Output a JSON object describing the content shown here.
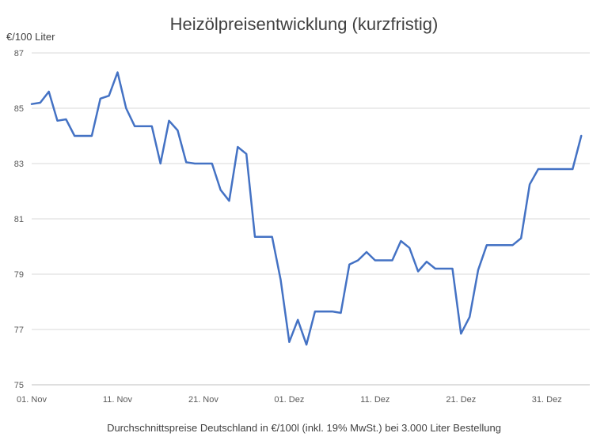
{
  "chart_data": {
    "type": "line",
    "title": "Heizölpreisentwicklung (kurzfristig)",
    "ylabel": "€/100 Liter",
    "xlabel": "Durchschnittspreise Deutschland in €/100l (inkl. 19% MwSt.) bei 3.000 Liter Bestellung",
    "ylim": [
      75,
      87
    ],
    "yticks": [
      75,
      77,
      79,
      81,
      83,
      85,
      87
    ],
    "x_range_days": [
      1,
      66
    ],
    "xticks": [
      {
        "day": 1,
        "label": "01. Nov"
      },
      {
        "day": 11,
        "label": "11. Nov"
      },
      {
        "day": 21,
        "label": "21. Nov"
      },
      {
        "day": 31,
        "label": "01. Dez"
      },
      {
        "day": 41,
        "label": "11. Dez"
      },
      {
        "day": 51,
        "label": "21. Dez"
      },
      {
        "day": 61,
        "label": "31. Dez"
      }
    ],
    "grid": true,
    "series": [
      {
        "color": "#4472c4",
        "points": [
          [
            1,
            85.15
          ],
          [
            2,
            85.2
          ],
          [
            3,
            85.6
          ],
          [
            4,
            84.55
          ],
          [
            5,
            84.6
          ],
          [
            6,
            84.0
          ],
          [
            7,
            84.0
          ],
          [
            8,
            84.0
          ],
          [
            9,
            85.35
          ],
          [
            10,
            85.45
          ],
          [
            11,
            86.3
          ],
          [
            12,
            85.0
          ],
          [
            13,
            84.35
          ],
          [
            14,
            84.35
          ],
          [
            15,
            84.35
          ],
          [
            16,
            83.0
          ],
          [
            17,
            84.55
          ],
          [
            18,
            84.2
          ],
          [
            19,
            83.05
          ],
          [
            20,
            83.0
          ],
          [
            21,
            83.0
          ],
          [
            22,
            83.0
          ],
          [
            23,
            82.05
          ],
          [
            24,
            81.65
          ],
          [
            25,
            83.6
          ],
          [
            26,
            83.35
          ],
          [
            27,
            80.35
          ],
          [
            28,
            80.35
          ],
          [
            29,
            80.35
          ],
          [
            30,
            78.8
          ],
          [
            31,
            76.55
          ],
          [
            32,
            77.35
          ],
          [
            33,
            76.45
          ],
          [
            34,
            77.65
          ],
          [
            35,
            77.65
          ],
          [
            36,
            77.65
          ],
          [
            37,
            77.6
          ],
          [
            38,
            79.35
          ],
          [
            39,
            79.5
          ],
          [
            40,
            79.8
          ],
          [
            41,
            79.5
          ],
          [
            42,
            79.5
          ],
          [
            43,
            79.5
          ],
          [
            44,
            80.2
          ],
          [
            45,
            79.95
          ],
          [
            46,
            79.1
          ],
          [
            47,
            79.45
          ],
          [
            48,
            79.2
          ],
          [
            49,
            79.2
          ],
          [
            50,
            79.2
          ],
          [
            51,
            76.85
          ],
          [
            52,
            77.45
          ],
          [
            53,
            79.15
          ],
          [
            54,
            80.05
          ],
          [
            55,
            80.05
          ],
          [
            56,
            80.05
          ],
          [
            57,
            80.05
          ],
          [
            58,
            80.3
          ],
          [
            59,
            82.25
          ],
          [
            60,
            82.8
          ],
          [
            61,
            82.8
          ],
          [
            62,
            82.8
          ],
          [
            63,
            82.8
          ],
          [
            64,
            82.8
          ],
          [
            65,
            84.0
          ]
        ]
      }
    ]
  }
}
